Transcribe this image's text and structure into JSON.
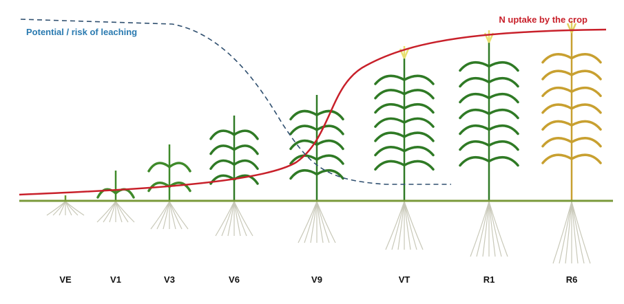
{
  "curves": [
    {
      "label": "Potential / risk of leaching"
    },
    {
      "label": "N uptake by the crop"
    }
  ],
  "stages": [
    "VE",
    "V1",
    "V3",
    "V6",
    "V9",
    "VT",
    "R1",
    "R6"
  ]
}
